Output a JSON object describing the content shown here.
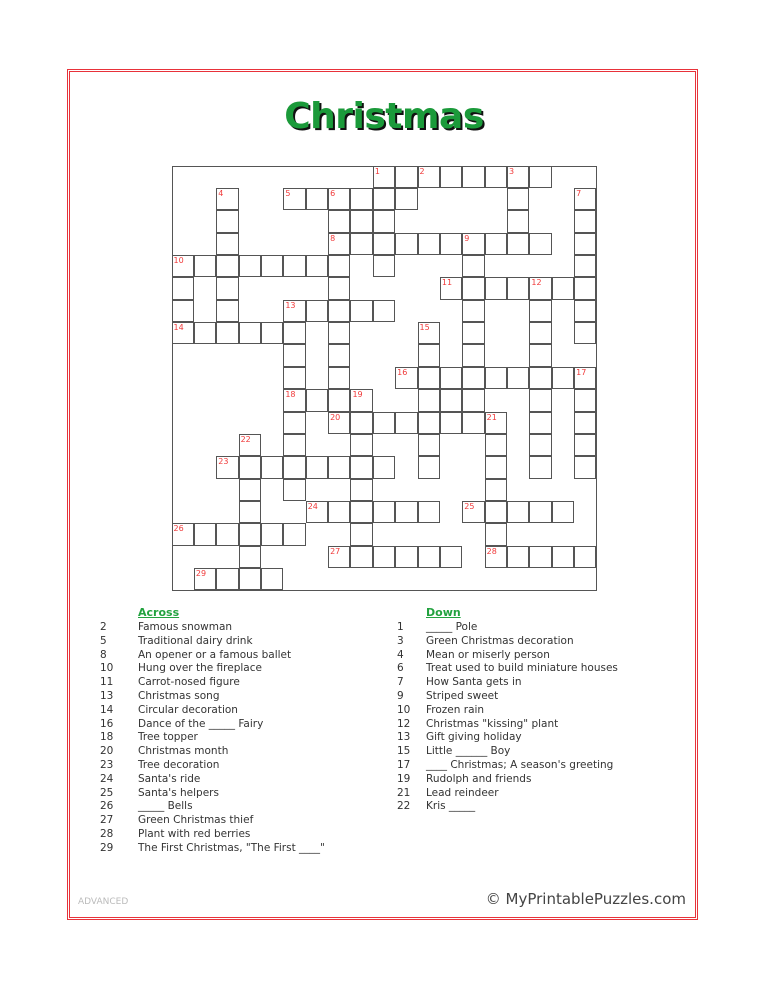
{
  "title": "Christmas",
  "title_color": "#1b9a3a",
  "number_color": "#f03a3a",
  "border_color": "#e8323a",
  "grid": {
    "size": 19,
    "cells": [
      ".........########..",
      "..#..######....#..#",
      "..#....###.....#..#",
      "..#....##########.#",
      "########.#...#....#",
      "#.#....#....#######",
      "#.#..#####...#..#.#",
      "######.#...#.#..#.#",
      ".....#.#...#.#..#..",
      ".....#.#..#########",
      ".....####..###..#.#",
      ".....#.########.#.#",
      "...#.#..#..#..#.#.#",
      "..########.#..#.#.#",
      "...#.#..#.....#....",
      "...#..######.#####.",
      "######..#.....#....",
      "...#...######.#####",
      ".####.............."
    ],
    "numbers": [
      {
        "n": "1",
        "r": 0,
        "c": 9
      },
      {
        "n": "2",
        "r": 0,
        "c": 11
      },
      {
        "n": "3",
        "r": 0,
        "c": 15
      },
      {
        "n": "4",
        "r": 1,
        "c": 2
      },
      {
        "n": "5",
        "r": 1,
        "c": 5
      },
      {
        "n": "6",
        "r": 1,
        "c": 7
      },
      {
        "n": "7",
        "r": 1,
        "c": 18
      },
      {
        "n": "8",
        "r": 3,
        "c": 7
      },
      {
        "n": "9",
        "r": 3,
        "c": 13
      },
      {
        "n": "10",
        "r": 4,
        "c": 0
      },
      {
        "n": "11",
        "r": 5,
        "c": 12
      },
      {
        "n": "12",
        "r": 5,
        "c": 16
      },
      {
        "n": "13",
        "r": 6,
        "c": 5
      },
      {
        "n": "14",
        "r": 7,
        "c": 0
      },
      {
        "n": "15",
        "r": 7,
        "c": 11
      },
      {
        "n": "16",
        "r": 9,
        "c": 10
      },
      {
        "n": "17",
        "r": 9,
        "c": 18
      },
      {
        "n": "18",
        "r": 10,
        "c": 5
      },
      {
        "n": "19",
        "r": 10,
        "c": 8
      },
      {
        "n": "20",
        "r": 11,
        "c": 7
      },
      {
        "n": "21",
        "r": 11,
        "c": 14
      },
      {
        "n": "22",
        "r": 12,
        "c": 3
      },
      {
        "n": "23",
        "r": 13,
        "c": 2
      },
      {
        "n": "24",
        "r": 15,
        "c": 6
      },
      {
        "n": "25",
        "r": 15,
        "c": 13
      },
      {
        "n": "26",
        "r": 16,
        "c": 0
      },
      {
        "n": "27",
        "r": 17,
        "c": 7
      },
      {
        "n": "28",
        "r": 17,
        "c": 14
      },
      {
        "n": "29",
        "r": 18,
        "c": 1
      }
    ]
  },
  "across": {
    "heading": "Across",
    "clues": [
      {
        "n": "2",
        "text": "Famous snowman"
      },
      {
        "n": "5",
        "text": "Traditional dairy drink"
      },
      {
        "n": "8",
        "text": "An opener or a famous ballet"
      },
      {
        "n": "10",
        "text": "Hung over the fireplace"
      },
      {
        "n": "11",
        "text": "Carrot-nosed figure"
      },
      {
        "n": "13",
        "text": "Christmas song"
      },
      {
        "n": "14",
        "text": "Circular decoration"
      },
      {
        "n": "16",
        "text": "Dance of the _____ Fairy"
      },
      {
        "n": "18",
        "text": "Tree topper"
      },
      {
        "n": "20",
        "text": "Christmas month"
      },
      {
        "n": "23",
        "text": "Tree decoration"
      },
      {
        "n": "24",
        "text": "Santa's ride"
      },
      {
        "n": "25",
        "text": "Santa's helpers"
      },
      {
        "n": "26",
        "text": "_____ Bells"
      },
      {
        "n": "27",
        "text": "Green Christmas thief"
      },
      {
        "n": "28",
        "text": "Plant with red berries"
      },
      {
        "n": "29",
        "text": "The First Christmas, \"The First ____\""
      }
    ]
  },
  "down": {
    "heading": "Down",
    "clues": [
      {
        "n": "1",
        "text": "_____ Pole"
      },
      {
        "n": "3",
        "text": "Green Christmas decoration"
      },
      {
        "n": "4",
        "text": "Mean or miserly person"
      },
      {
        "n": "6",
        "text": "Treat used to build miniature houses"
      },
      {
        "n": "7",
        "text": "How Santa gets in"
      },
      {
        "n": "9",
        "text": "Striped sweet"
      },
      {
        "n": "10",
        "text": "Frozen rain"
      },
      {
        "n": "12",
        "text": "Christmas \"kissing\" plant"
      },
      {
        "n": "13",
        "text": "Gift giving holiday"
      },
      {
        "n": "15",
        "text": "Little ______ Boy"
      },
      {
        "n": "17",
        "text": "____ Christmas; A season's greeting"
      },
      {
        "n": "19",
        "text": "Rudolph and friends"
      },
      {
        "n": "21",
        "text": "Lead reindeer"
      },
      {
        "n": "22",
        "text": "Kris _____"
      }
    ]
  },
  "footer": {
    "level": "ADVANCED",
    "brand": "© MyPrintablePuzzles.com"
  }
}
